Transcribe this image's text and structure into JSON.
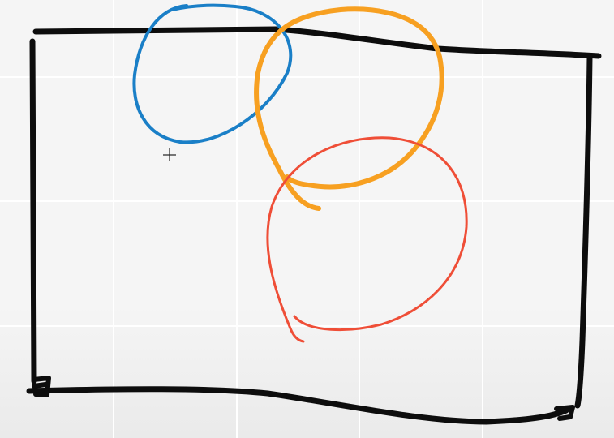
{
  "whiteboard": {
    "cursor_icon": "crosshair-cursor-icon",
    "ink_colors": {
      "frame": "#0d0d0d",
      "blue_loop": "#1a7fc7",
      "orange_loop": "#f7a021",
      "red_loop": "#ef4e37"
    },
    "background_color": "#f5f5f5",
    "grid_color": "#ffffff"
  }
}
